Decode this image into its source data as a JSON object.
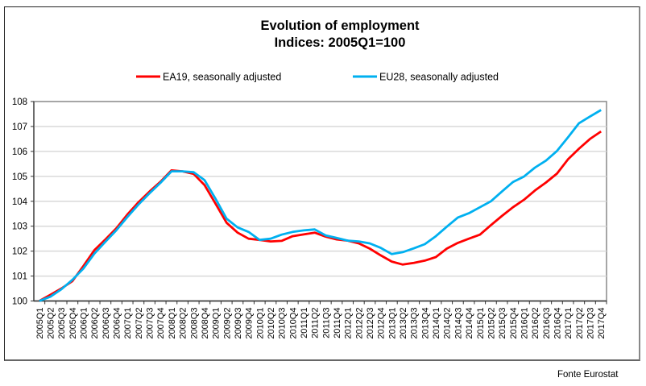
{
  "chart_data": {
    "type": "line",
    "title": "Evolution of employment",
    "subtitle": "Indices: 2005Q1=100",
    "xlabel": "",
    "ylabel": "",
    "ylim": [
      100,
      108
    ],
    "yticks": [
      "100",
      "101",
      "102",
      "103",
      "104",
      "105",
      "106",
      "107",
      "108"
    ],
    "grid": true,
    "legend_position": "top",
    "categories": [
      "2005Q1",
      "2005Q2",
      "2005Q3",
      "2005Q4",
      "2006Q1",
      "2006Q2",
      "2006Q3",
      "2006Q4",
      "2007Q1",
      "2007Q2",
      "2007Q3",
      "2007Q4",
      "2008Q1",
      "2008Q2",
      "2008Q3",
      "2008Q4",
      "2009Q1",
      "2009Q2",
      "2009Q3",
      "2009Q4",
      "2010Q1",
      "2010Q2",
      "2010Q3",
      "2010Q4",
      "2011Q1",
      "2011Q2",
      "2011Q3",
      "2011Q4",
      "2012Q1",
      "2012Q2",
      "2012Q3",
      "2012Q4",
      "2013Q1",
      "2013Q2",
      "2013Q3",
      "2013Q4",
      "2014Q1",
      "2014Q2",
      "2014Q3",
      "2014Q4",
      "2015Q1",
      "2015Q2",
      "2015Q3",
      "2015Q4",
      "2016Q1",
      "2016Q2",
      "2016Q3",
      "2016Q4",
      "2017Q1",
      "2017Q2",
      "2017Q3",
      "2017Q4"
    ],
    "series": [
      {
        "name": "EA19, seasonally adjusted",
        "color": "#ff0000",
        "values": [
          100.0,
          100.25,
          100.5,
          100.8,
          101.4,
          102.04,
          102.47,
          102.92,
          103.47,
          103.96,
          104.39,
          104.78,
          105.24,
          105.2,
          105.1,
          104.65,
          103.9,
          103.14,
          102.74,
          102.5,
          102.45,
          102.39,
          102.41,
          102.6,
          102.67,
          102.74,
          102.58,
          102.47,
          102.42,
          102.31,
          102.1,
          101.83,
          101.58,
          101.46,
          101.53,
          101.62,
          101.76,
          102.1,
          102.33,
          102.5,
          102.66,
          103.04,
          103.41,
          103.76,
          104.06,
          104.43,
          104.75,
          105.11,
          105.68,
          106.11,
          106.5,
          106.8
        ]
      },
      {
        "name": "EU28, seasonally adjusted",
        "color": "#00b0f0",
        "values": [
          100.0,
          100.17,
          100.47,
          100.85,
          101.3,
          101.9,
          102.38,
          102.84,
          103.37,
          103.87,
          104.32,
          104.74,
          105.2,
          105.2,
          105.17,
          104.85,
          104.1,
          103.3,
          102.95,
          102.77,
          102.45,
          102.5,
          102.66,
          102.77,
          102.83,
          102.87,
          102.63,
          102.53,
          102.42,
          102.39,
          102.31,
          102.13,
          101.88,
          101.96,
          102.11,
          102.28,
          102.6,
          102.98,
          103.35,
          103.52,
          103.76,
          104.0,
          104.39,
          104.77,
          104.99,
          105.35,
          105.63,
          106.02,
          106.56,
          107.13,
          107.4,
          107.66
        ]
      }
    ]
  },
  "footer": "Fonte Eurostat"
}
